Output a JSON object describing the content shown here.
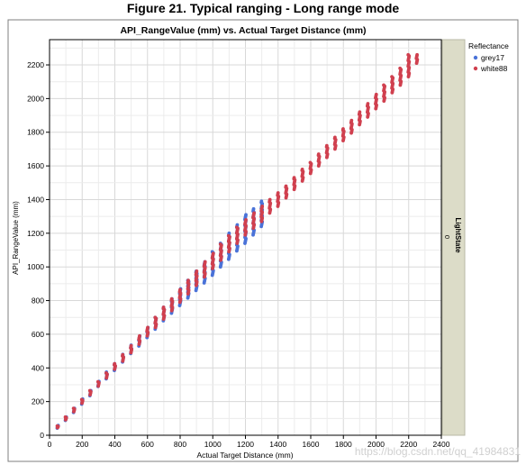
{
  "figure_title": "Figure 21. Typical ranging - Long range mode",
  "watermark": "https://blog.csdn.net/qq_41984831",
  "chart_data": {
    "type": "scatter",
    "title": "API_RangeValue (mm) vs. Actual Target Distance (mm)",
    "xlabel": "Actual Target Distance (mm)",
    "ylabel": "API_RangeValue (mm)",
    "xlim": [
      0,
      2400
    ],
    "ylim": [
      0,
      2350
    ],
    "x_ticks": [
      0,
      200,
      400,
      600,
      800,
      1000,
      1200,
      1400,
      1600,
      1800,
      2000,
      2200,
      2400
    ],
    "y_ticks": [
      0,
      200,
      400,
      600,
      800,
      1000,
      1200,
      1400,
      1600,
      1800,
      2000,
      2200
    ],
    "grid": true,
    "legend": {
      "title": "Reflectance",
      "position": "top-right"
    },
    "facet_label": "LightState",
    "facet_value": "0",
    "series": [
      {
        "name": "grey17",
        "color": "#4a72d8",
        "points": [
          {
            "x": 50,
            "y": [
              42,
              58
            ]
          },
          {
            "x": 100,
            "y": [
              88,
              108
            ]
          },
          {
            "x": 150,
            "y": [
              135,
              160
            ]
          },
          {
            "x": 200,
            "y": [
              185,
              215
            ]
          },
          {
            "x": 250,
            "y": [
              235,
              265
            ]
          },
          {
            "x": 300,
            "y": [
              290,
              320
            ]
          },
          {
            "x": 350,
            "y": [
              335,
              375
            ]
          },
          {
            "x": 400,
            "y": [
              385,
              425
            ]
          },
          {
            "x": 450,
            "y": [
              435,
              480
            ]
          },
          {
            "x": 500,
            "y": [
              485,
              535
            ]
          },
          {
            "x": 550,
            "y": [
              530,
              590
            ]
          },
          {
            "x": 600,
            "y": [
              580,
              640
            ]
          },
          {
            "x": 650,
            "y": [
              630,
              700
            ]
          },
          {
            "x": 700,
            "y": [
              680,
              760
            ]
          },
          {
            "x": 750,
            "y": [
              725,
              810
            ]
          },
          {
            "x": 800,
            "y": [
              770,
              870
            ]
          },
          {
            "x": 850,
            "y": [
              815,
              920
            ]
          },
          {
            "x": 900,
            "y": [
              860,
              975
            ]
          },
          {
            "x": 950,
            "y": [
              905,
              1030
            ]
          },
          {
            "x": 1000,
            "y": [
              950,
              1090
            ]
          },
          {
            "x": 1050,
            "y": [
              1000,
              1140
            ]
          },
          {
            "x": 1100,
            "y": [
              1045,
              1200
            ]
          },
          {
            "x": 1150,
            "y": [
              1095,
              1250
            ]
          },
          {
            "x": 1200,
            "y": [
              1140,
              1310
            ]
          },
          {
            "x": 1250,
            "y": [
              1190,
              1345
            ]
          },
          {
            "x": 1300,
            "y": [
              1240,
              1390
            ]
          }
        ]
      },
      {
        "name": "white88",
        "color": "#d0404f",
        "points": [
          {
            "x": 50,
            "y": [
              45,
              55
            ]
          },
          {
            "x": 100,
            "y": [
              92,
              108
            ]
          },
          {
            "x": 150,
            "y": [
              140,
              160
            ]
          },
          {
            "x": 200,
            "y": [
              190,
              212
            ]
          },
          {
            "x": 250,
            "y": [
              240,
              265
            ]
          },
          {
            "x": 300,
            "y": [
              292,
              318
            ]
          },
          {
            "x": 350,
            "y": [
              340,
              370
            ]
          },
          {
            "x": 400,
            "y": [
              392,
              425
            ]
          },
          {
            "x": 450,
            "y": [
              440,
              478
            ]
          },
          {
            "x": 500,
            "y": [
              490,
              532
            ]
          },
          {
            "x": 550,
            "y": [
              540,
              590
            ]
          },
          {
            "x": 600,
            "y": [
              590,
              640
            ]
          },
          {
            "x": 650,
            "y": [
              640,
              700
            ]
          },
          {
            "x": 700,
            "y": [
              690,
              760
            ]
          },
          {
            "x": 750,
            "y": [
              740,
              810
            ]
          },
          {
            "x": 800,
            "y": [
              790,
              865
            ]
          },
          {
            "x": 850,
            "y": [
              840,
              920
            ]
          },
          {
            "x": 900,
            "y": [
              890,
              975
            ]
          },
          {
            "x": 950,
            "y": [
              940,
              1030
            ]
          },
          {
            "x": 1000,
            "y": [
              990,
              1080
            ]
          },
          {
            "x": 1050,
            "y": [
              1040,
              1135
            ]
          },
          {
            "x": 1100,
            "y": [
              1090,
              1185
            ]
          },
          {
            "x": 1150,
            "y": [
              1140,
              1235
            ]
          },
          {
            "x": 1200,
            "y": [
              1190,
              1280
            ]
          },
          {
            "x": 1250,
            "y": [
              1230,
              1320
            ]
          },
          {
            "x": 1300,
            "y": [
              1270,
              1360
            ]
          },
          {
            "x": 1350,
            "y": [
              1320,
              1400
            ]
          },
          {
            "x": 1400,
            "y": [
              1360,
              1440
            ]
          },
          {
            "x": 1450,
            "y": [
              1410,
              1480
            ]
          },
          {
            "x": 1500,
            "y": [
              1460,
              1530
            ]
          },
          {
            "x": 1550,
            "y": [
              1510,
              1580
            ]
          },
          {
            "x": 1600,
            "y": [
              1555,
              1620
            ]
          },
          {
            "x": 1650,
            "y": [
              1600,
              1670
            ]
          },
          {
            "x": 1700,
            "y": [
              1650,
              1720
            ]
          },
          {
            "x": 1750,
            "y": [
              1700,
              1770
            ]
          },
          {
            "x": 1800,
            "y": [
              1750,
              1820
            ]
          },
          {
            "x": 1850,
            "y": [
              1795,
              1870
            ]
          },
          {
            "x": 1900,
            "y": [
              1845,
              1920
            ]
          },
          {
            "x": 1950,
            "y": [
              1890,
              1970
            ]
          },
          {
            "x": 2000,
            "y": [
              1940,
              2025
            ]
          },
          {
            "x": 2050,
            "y": [
              1985,
              2080
            ]
          },
          {
            "x": 2100,
            "y": [
              2035,
              2130
            ]
          },
          {
            "x": 2150,
            "y": [
              2080,
              2180
            ]
          },
          {
            "x": 2200,
            "y": [
              2130,
              2260
            ]
          },
          {
            "x": 2250,
            "y": [
              2210,
              2260
            ]
          }
        ]
      }
    ]
  }
}
